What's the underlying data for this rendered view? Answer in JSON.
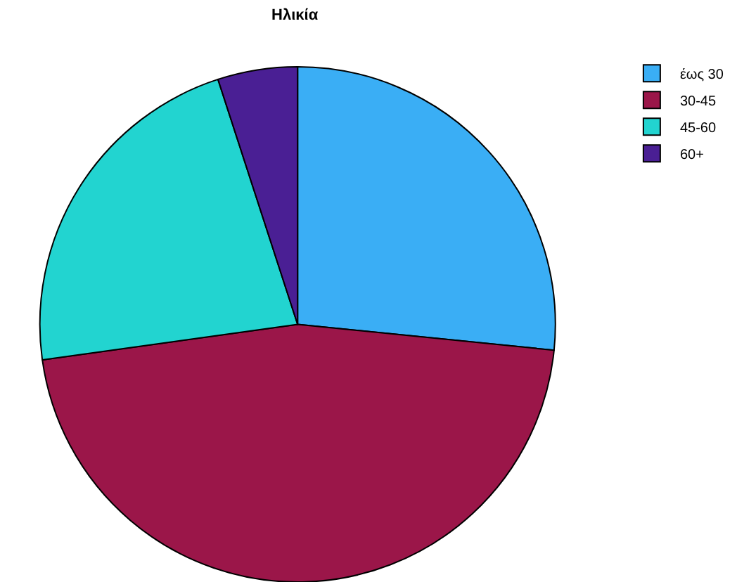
{
  "chart_data": {
    "type": "pie",
    "title": "Ηλικία",
    "categories": [
      "έως 30",
      "30-45",
      "45-60",
      "60+"
    ],
    "values": [
      26.6,
      46.2,
      22.2,
      5.0
    ],
    "colors": [
      "#3aaef5",
      "#9b1649",
      "#22d4d0",
      "#4a1f94"
    ],
    "legend": "top right"
  }
}
